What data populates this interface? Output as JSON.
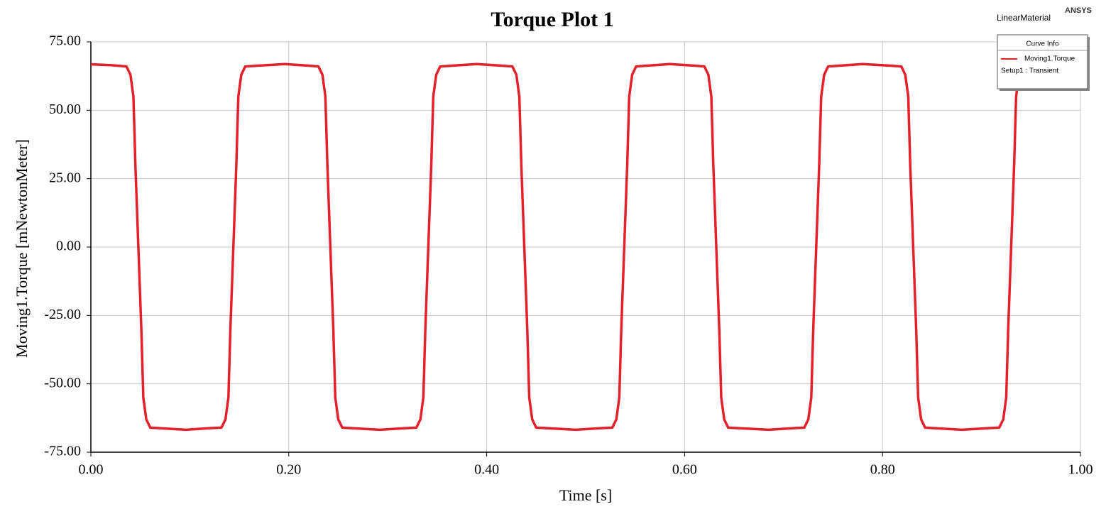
{
  "chart_data": {
    "type": "line",
    "title": "Torque Plot 1",
    "xlabel": "Time [s]",
    "ylabel": "Moving1.Torque [mNewtonMeter]",
    "design_name": "LinearMaterial",
    "watermark": "ANSYS",
    "legend_title": "Curve Info",
    "legend_subtext": "Setup1 : Transient",
    "legend_position": "upper right",
    "grid": true,
    "xlim": [
      0,
      1
    ],
    "ylim": [
      -75,
      75
    ],
    "xticks": [
      {
        "value": 0,
        "label": "0.00"
      },
      {
        "value": 0.2,
        "label": "0.20"
      },
      {
        "value": 0.4,
        "label": "0.40"
      },
      {
        "value": 0.6,
        "label": "0.60"
      },
      {
        "value": 0.8,
        "label": "0.80"
      },
      {
        "value": 1,
        "label": "1.00"
      }
    ],
    "yticks": [
      {
        "value": 75,
        "label": "75.00"
      },
      {
        "value": 50,
        "label": "50.00"
      },
      {
        "value": 25,
        "label": "25.00"
      },
      {
        "value": 0,
        "label": "0.00"
      },
      {
        "value": -25,
        "label": "-25.00"
      },
      {
        "value": -50,
        "label": "-50.00"
      },
      {
        "value": -75,
        "label": "-75.00"
      }
    ],
    "x": [
      0,
      0.02,
      0.036,
      0.04,
      0.043,
      0.045,
      0.048,
      0.051,
      0.053,
      0.056,
      0.06,
      0.096,
      0.12,
      0.132,
      0.136,
      0.139,
      0.141,
      0.144,
      0.147,
      0.149,
      0.152,
      0.156,
      0.196,
      0.22,
      0.23,
      0.234,
      0.237,
      0.239,
      0.242,
      0.245,
      0.247,
      0.25,
      0.254,
      0.292,
      0.318,
      0.329,
      0.333,
      0.336,
      0.338,
      0.341,
      0.344,
      0.346,
      0.349,
      0.353,
      0.39,
      0.415,
      0.426,
      0.43,
      0.433,
      0.435,
      0.438,
      0.441,
      0.443,
      0.446,
      0.45,
      0.49,
      0.515,
      0.527,
      0.531,
      0.534,
      0.536,
      0.539,
      0.542,
      0.544,
      0.547,
      0.551,
      0.585,
      0.61,
      0.62,
      0.624,
      0.627,
      0.629,
      0.632,
      0.635,
      0.637,
      0.64,
      0.644,
      0.685,
      0.71,
      0.721,
      0.725,
      0.728,
      0.73,
      0.733,
      0.736,
      0.738,
      0.741,
      0.745,
      0.78,
      0.808,
      0.819,
      0.823,
      0.826,
      0.828,
      0.831,
      0.834,
      0.836,
      0.839,
      0.843,
      0.88,
      0.907,
      0.918,
      0.922,
      0.925,
      0.927,
      0.93,
      0.933,
      0.935,
      0.938,
      0.942
    ],
    "series": [
      {
        "name": "Moving1.Torque",
        "color": "#e3212b",
        "values": [
          66.8,
          66.5,
          66,
          63,
          55,
          30,
          0,
          -30,
          -55,
          -63,
          -66,
          -66.8,
          -66.2,
          -66,
          -63,
          -55,
          -30,
          0,
          30,
          55,
          63,
          66,
          66.9,
          66.3,
          66,
          63,
          55,
          30,
          0,
          -30,
          -55,
          -63,
          -66,
          -66.8,
          -66.2,
          -66,
          -63,
          -55,
          -30,
          0,
          30,
          55,
          63,
          66,
          66.9,
          66.3,
          66,
          63,
          55,
          30,
          0,
          -30,
          -55,
          -63,
          -66,
          -66.8,
          -66.2,
          -66,
          -63,
          -55,
          -30,
          0,
          30,
          55,
          63,
          66,
          66.9,
          66.3,
          66,
          63,
          55,
          30,
          0,
          -30,
          -55,
          -63,
          -66,
          -66.8,
          -66.2,
          -66,
          -63,
          -55,
          -30,
          0,
          30,
          55,
          63,
          66,
          66.9,
          66.3,
          66,
          63,
          55,
          30,
          0,
          -30,
          -55,
          -63,
          -66,
          -66.8,
          -66.2,
          -66,
          -63,
          -55,
          -30,
          0,
          30,
          55,
          63,
          66
        ]
      }
    ]
  }
}
